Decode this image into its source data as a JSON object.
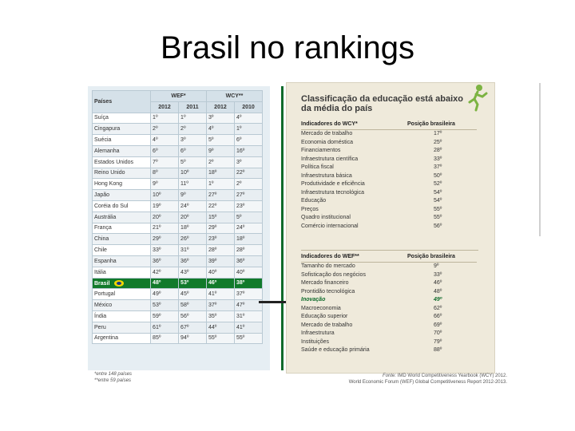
{
  "slide": {
    "title": "Brasil no rankings"
  },
  "left_table": {
    "header": {
      "paises": "Países",
      "wef": "WEF*",
      "wcy": "WCY**",
      "years": [
        "2012",
        "2011",
        "2012",
        "2010"
      ]
    },
    "rows": [
      {
        "country": "Suíça",
        "v": [
          "1º",
          "1º",
          "3º",
          "4º"
        ]
      },
      {
        "country": "Cingapura",
        "v": [
          "2º",
          "2º",
          "4º",
          "1º"
        ]
      },
      {
        "country": "Suécia",
        "v": [
          "4º",
          "3º",
          "5º",
          "6º"
        ]
      },
      {
        "country": "Alemanha",
        "v": [
          "6º",
          "6º",
          "9º",
          "16º"
        ]
      },
      {
        "country": "Estados Unidos",
        "v": [
          "7º",
          "5º",
          "2º",
          "3º"
        ]
      },
      {
        "country": "Reino Unido",
        "v": [
          "8º",
          "10º",
          "18º",
          "22º"
        ]
      },
      {
        "country": "Hong Kong",
        "v": [
          "9º",
          "11º",
          "1º",
          "2º"
        ]
      },
      {
        "country": "Japão",
        "v": [
          "10º",
          "9º",
          "27º",
          "27º"
        ]
      },
      {
        "country": "Coréia do Sul",
        "v": [
          "19º",
          "24º",
          "22º",
          "23º"
        ]
      },
      {
        "country": "Austrália",
        "v": [
          "20º",
          "20º",
          "15º",
          "5º"
        ]
      },
      {
        "country": "França",
        "v": [
          "21º",
          "18º",
          "29º",
          "24º"
        ]
      },
      {
        "country": "China",
        "v": [
          "29º",
          "26º",
          "23º",
          "18º"
        ]
      },
      {
        "country": "Chile",
        "v": [
          "33º",
          "31º",
          "28º",
          "28º"
        ]
      },
      {
        "country": "Espanha",
        "v": [
          "36º",
          "36º",
          "39º",
          "36º"
        ]
      },
      {
        "country": "Itália",
        "v": [
          "42º",
          "43º",
          "40º",
          "40º"
        ]
      },
      {
        "country": "Brasil",
        "v": [
          "48º",
          "53º",
          "46º",
          "38º"
        ],
        "highlight": true
      },
      {
        "country": "Portugal",
        "v": [
          "49º",
          "45º",
          "41º",
          "37º"
        ]
      },
      {
        "country": "México",
        "v": [
          "53º",
          "58º",
          "37º",
          "47º"
        ]
      },
      {
        "country": "Índia",
        "v": [
          "59º",
          "56º",
          "35º",
          "31º"
        ]
      },
      {
        "country": "Peru",
        "v": [
          "61º",
          "67º",
          "44º",
          "41º"
        ]
      },
      {
        "country": "Argentina",
        "v": [
          "85º",
          "94º",
          "55º",
          "55º"
        ]
      }
    ],
    "footnotes": [
      "*entre 148 países",
      "**entre 59 países"
    ]
  },
  "right_panel": {
    "title": "Classificação da educação está abaixo da média do país",
    "wcy_header": {
      "label": "Indicadores do WCY*",
      "pos": "Posição brasileira"
    },
    "wcy_rows": [
      {
        "label": "Mercado de trabalho",
        "pos": "17º"
      },
      {
        "label": "Economia doméstica",
        "pos": "25º"
      },
      {
        "label": "Financiamentos",
        "pos": "28º"
      },
      {
        "label": "Infraestrutura científica",
        "pos": "33º"
      },
      {
        "label": "Política fiscal",
        "pos": "37º"
      },
      {
        "label": "Infraestrutura básica",
        "pos": "50º"
      },
      {
        "label": "Produtividade e eficiência",
        "pos": "52º"
      },
      {
        "label": "Infraestrutura tecnológica",
        "pos": "54º"
      },
      {
        "label": "Educação",
        "pos": "54º"
      },
      {
        "label": "Preços",
        "pos": "55º"
      },
      {
        "label": "Quadro institucional",
        "pos": "55º"
      },
      {
        "label": "Comércio internacional",
        "pos": "56º"
      }
    ],
    "wef_header": {
      "label": "Indicadores do WEF**",
      "pos": "Posição brasileira"
    },
    "wef_rows": [
      {
        "label": "Tamanho do mercado",
        "pos": "9º"
      },
      {
        "label": "Sofisticação dos negócios",
        "pos": "33º"
      },
      {
        "label": "Mercado financeiro",
        "pos": "46º"
      },
      {
        "label": "Prontidão tecnológica",
        "pos": "48º"
      },
      {
        "label": "Inovação",
        "pos": "49º",
        "highlight": true
      },
      {
        "label": "Macroeconomia",
        "pos": "62º"
      },
      {
        "label": "Educação superior",
        "pos": "66º"
      },
      {
        "label": "Mercado de trabalho",
        "pos": "69º"
      },
      {
        "label": "Infraestrutura",
        "pos": "70º"
      },
      {
        "label": "Instituições",
        "pos": "79º"
      },
      {
        "label": "Saúde e educação primária",
        "pos": "88º"
      }
    ],
    "source": {
      "label": "Fonte:",
      "line1": "IMD World Competitiveness Yearbook (WCY) 2012.",
      "line2": "World Economic Forum (WEF) Global Competitiveness Report 2012-2013."
    }
  },
  "colors": {
    "brazil_row": "#117a2b",
    "accent_green": "#0d6a2a",
    "panel_bg": "#efeadb"
  }
}
